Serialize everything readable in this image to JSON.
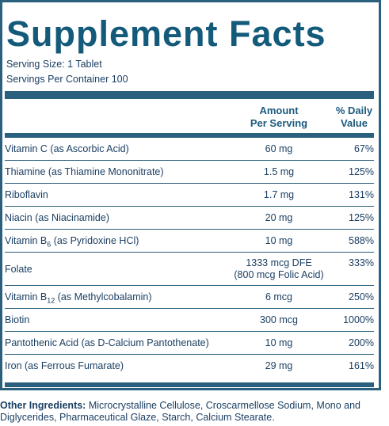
{
  "title": "Supplement Facts",
  "serving_size": "Serving Size: 1 Tablet",
  "servings_per_container": "Servings Per Container 100",
  "headers": {
    "amount_line1": "Amount",
    "amount_line2": "Per Serving",
    "dv_line1": "% Daily",
    "dv_line2": "Value"
  },
  "rows": [
    {
      "name": "Vitamin C (as Ascorbic Acid)",
      "amount": "60 mg",
      "dv": "67%"
    },
    {
      "name": "Thiamine (as Thiamine Mononitrate)",
      "amount": "1.5 mg",
      "dv": "125%"
    },
    {
      "name": "Riboflavin",
      "amount": "1.7 mg",
      "dv": "131%"
    },
    {
      "name": "Niacin (as Niacinamide)",
      "amount": "20 mg",
      "dv": "125%"
    },
    {
      "name_prefix": "Vitamin B",
      "name_sub": "6",
      "name_suffix": " (as Pyridoxine HCl)",
      "amount": "10 mg",
      "dv": "588%"
    },
    {
      "name": "Folate",
      "amount_line1": "1333 mcg DFE",
      "amount_line2": "(800 mcg Folic Acid)",
      "dv": "333%"
    },
    {
      "name_prefix": "Vitamin B",
      "name_sub": "12",
      "name_suffix": " (as Methylcobalamin)",
      "amount": "6 mcg",
      "dv": "250%"
    },
    {
      "name": "Biotin",
      "amount": "300 mcg",
      "dv": "1000%"
    },
    {
      "name": "Pantothenic Acid (as D-Calcium Pantothenate)",
      "amount": "10 mg",
      "dv": "200%"
    },
    {
      "name": "Iron (as Ferrous Fumarate)",
      "amount": "29 mg",
      "dv": "161%"
    }
  ],
  "other_ingredients": {
    "label": "Other Ingredients:",
    "text": " Microcrystalline Cellulose, Croscarmellose Sodium, Mono and Diglycerides, Pharmaceutical Glaze, Starch, Calcium Stearate."
  }
}
